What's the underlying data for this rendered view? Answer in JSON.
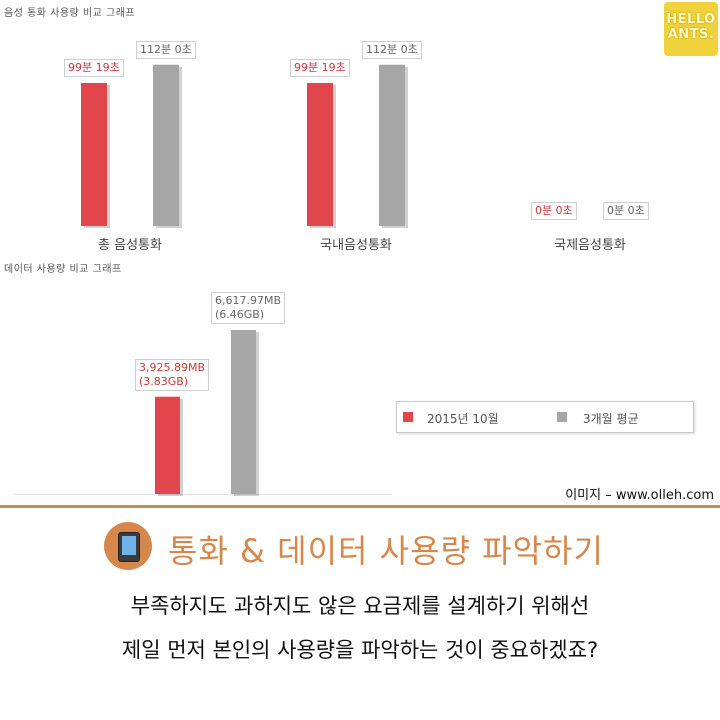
{
  "chart_data": [
    {
      "type": "bar",
      "title": "음성 통화 사용량 비교 그래프",
      "categories": [
        "총 음성통화",
        "국내음성통화",
        "국제음성통화"
      ],
      "value_unit": "minutes",
      "series": [
        {
          "name": "2015년 10월",
          "values": [
            99.317,
            99.317,
            0
          ],
          "labels": [
            "99분 19초",
            "99분 19초",
            "0분 0초"
          ]
        },
        {
          "name": "3개월 평균",
          "values": [
            112,
            112,
            0
          ],
          "labels": [
            "112분 0초",
            "112분 0초",
            "0분 0초"
          ]
        }
      ],
      "ylim": [
        0,
        125
      ]
    },
    {
      "type": "bar",
      "title": "데이터 사용량 비교 그래프",
      "categories": [
        ""
      ],
      "value_unit": "MB",
      "series": [
        {
          "name": "2015년 10월",
          "values": [
            3925.89
          ],
          "labels": [
            "3,925.89MB\n(3.83GB)"
          ]
        },
        {
          "name": "3개월 평균",
          "values": [
            6617.97
          ],
          "labels": [
            "6,617.97MB\n(6.46GB)"
          ]
        }
      ],
      "ylim": [
        0,
        7600
      ],
      "legend": {
        "placement": "right",
        "entries": [
          "2015년 10월",
          "3개월 평균"
        ]
      }
    }
  ],
  "colors": {
    "series_current": "#e0464b",
    "series_average": "#a6a6a6",
    "accent": "#d6874b"
  },
  "logo_text": "HELLO ANTS.",
  "source_text": "이미지 – www.olleh.com",
  "heading": "통화 & 데이터 사용량 파악하기",
  "icon": "tablet-icon",
  "body_lines": [
    "부족하지도 과하지도 않은 요금제를 설계하기 위해선",
    "제일 먼저 본인의 사용량을 파악하는 것이 중요하겠죠?"
  ]
}
